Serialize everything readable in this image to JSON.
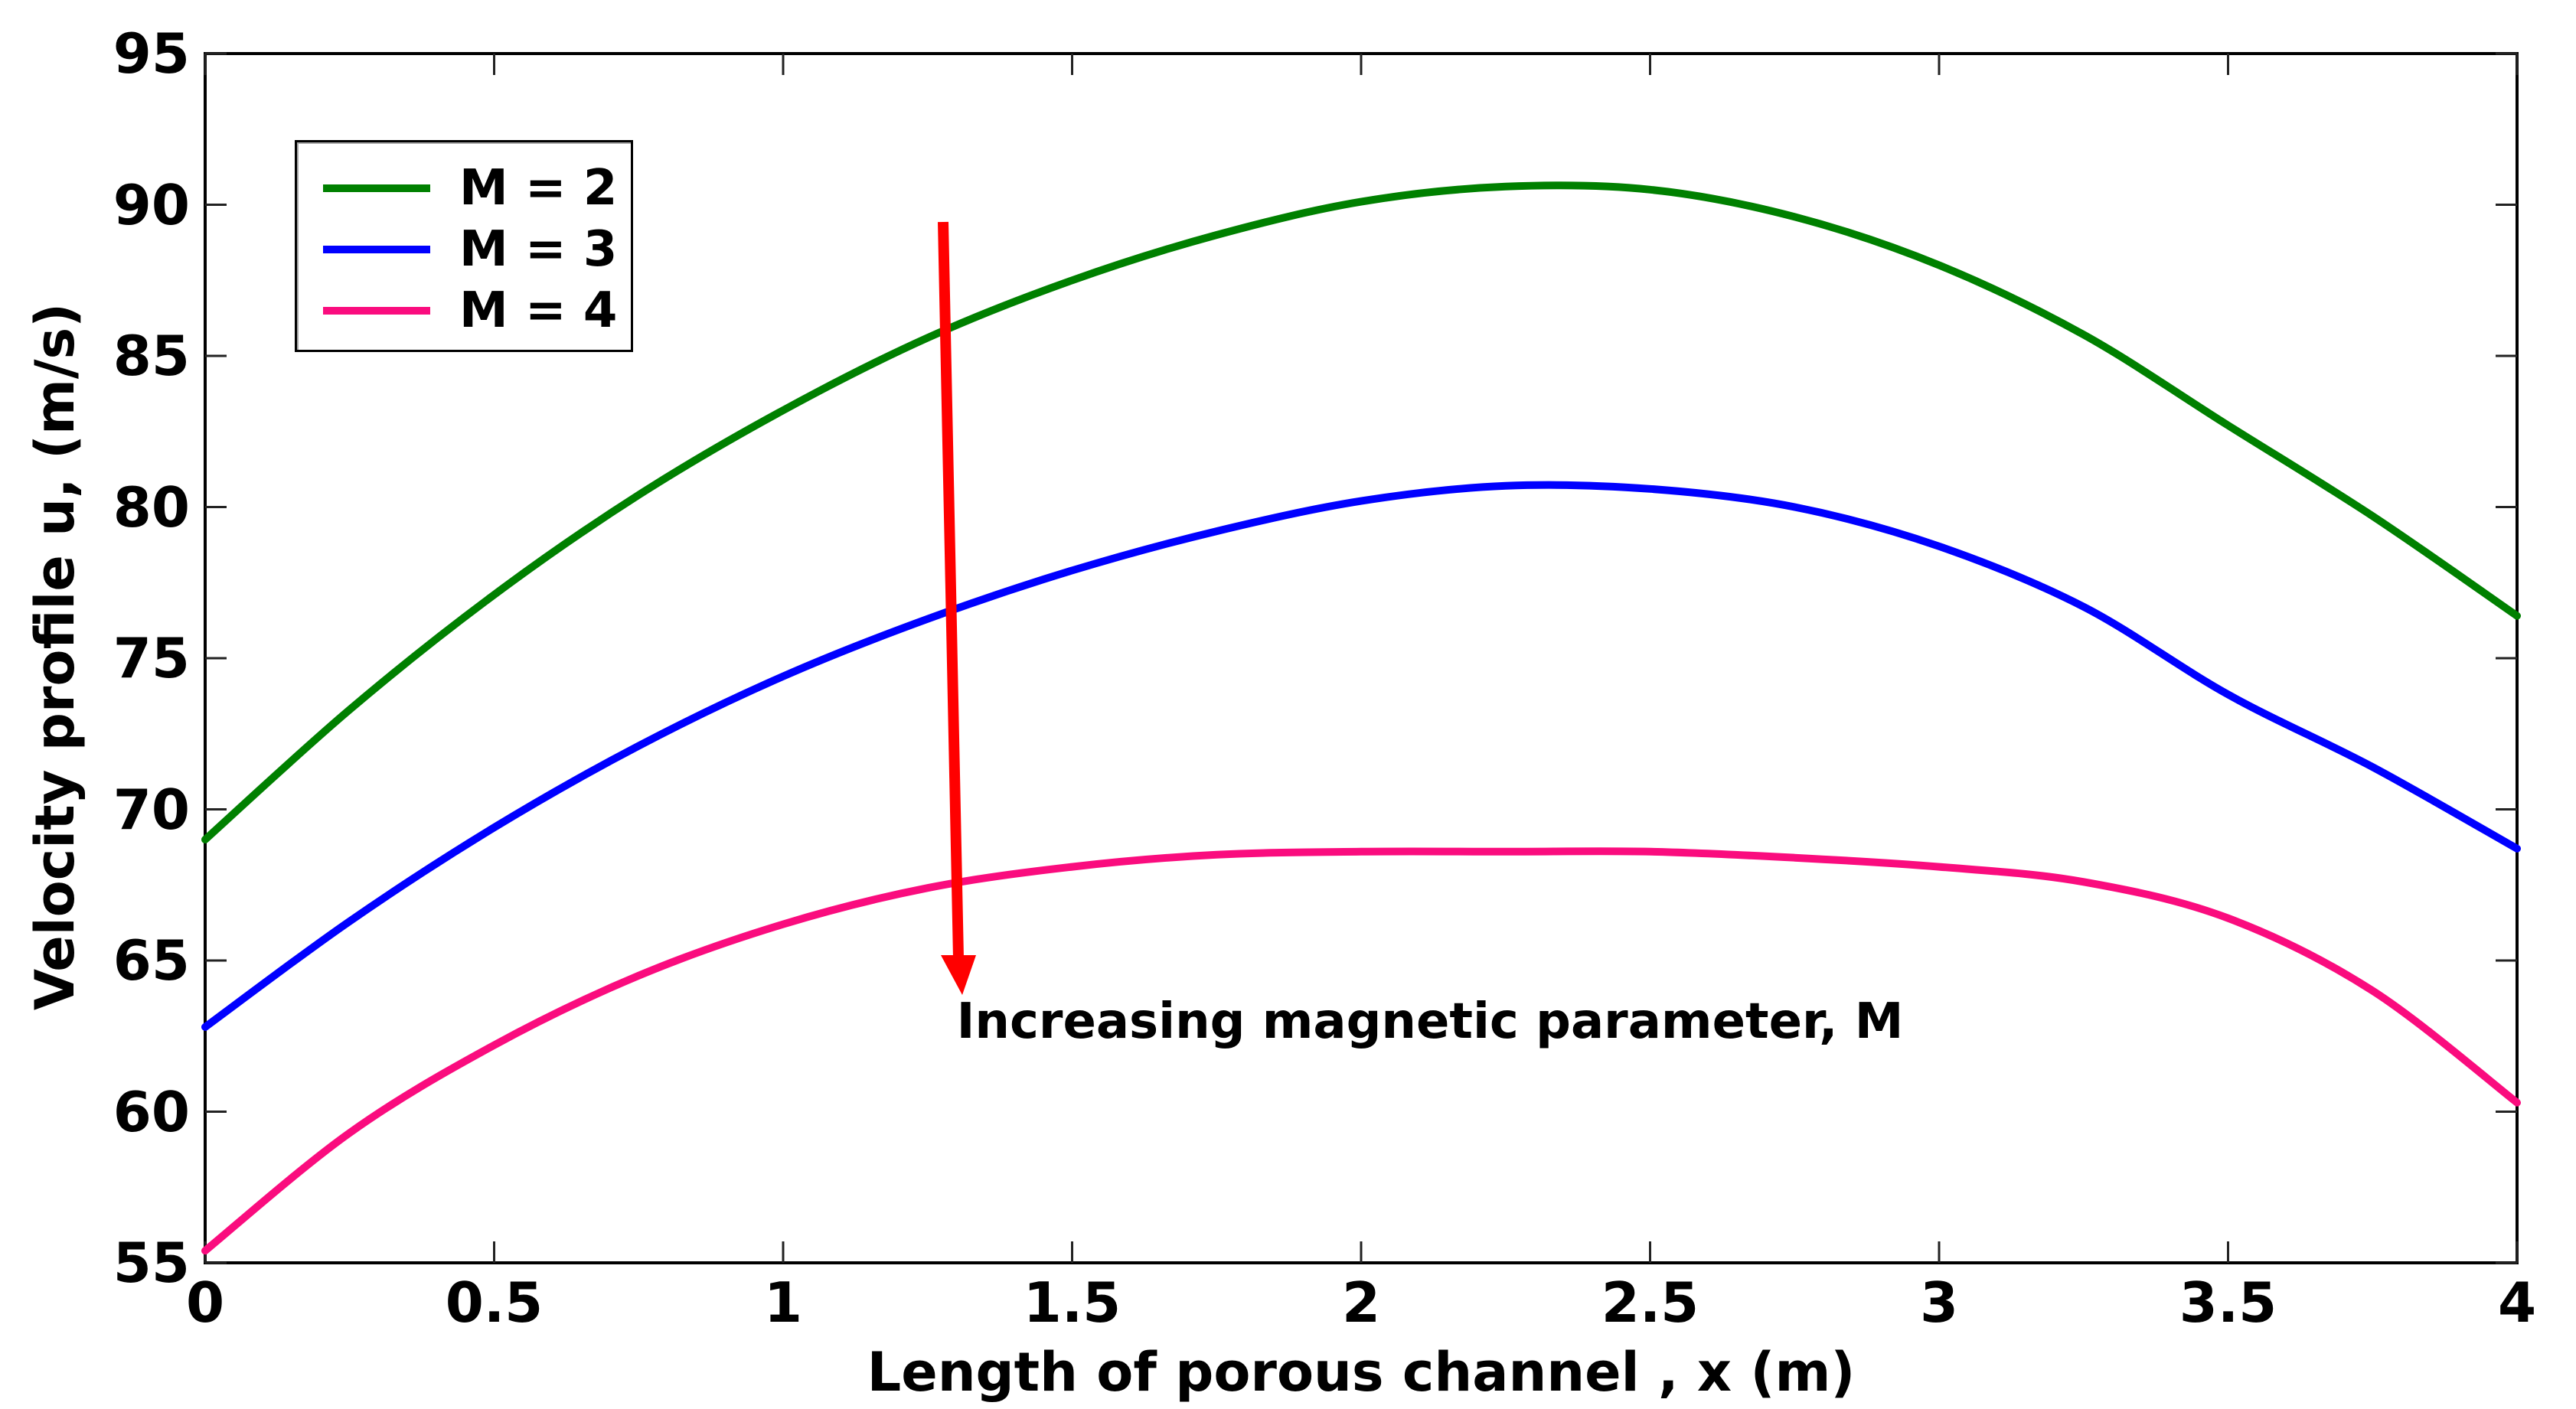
{
  "figure": {
    "background": "#ffffff",
    "axis_color": "#000000",
    "tick_color": "#222222"
  },
  "chart_data": {
    "type": "line",
    "title": "",
    "xlabel": "Length of porous channel , x (m)",
    "ylabel": "Velocity profile u, (m/s)",
    "xlim": [
      0,
      4
    ],
    "ylim": [
      55,
      95
    ],
    "grid": false,
    "legend_position": "top-left",
    "x_ticks": [
      "0",
      "0.5",
      "1",
      "1.5",
      "2",
      "2.5",
      "3",
      "3.5",
      "4"
    ],
    "y_ticks": [
      "55",
      "60",
      "65",
      "70",
      "75",
      "80",
      "85",
      "90",
      "95"
    ],
    "x": [
      0,
      0.25,
      0.5,
      0.75,
      1,
      1.25,
      1.5,
      1.75,
      2,
      2.25,
      2.5,
      2.75,
      3,
      3.25,
      3.5,
      3.75,
      4
    ],
    "series": [
      {
        "name": "M = 2",
        "color": "#008000",
        "values": [
          69.0,
          73.3,
          77.1,
          80.4,
          83.2,
          85.6,
          87.5,
          89.0,
          90.1,
          90.6,
          90.5,
          89.6,
          88.0,
          85.7,
          82.7,
          79.7,
          76.4
        ]
      },
      {
        "name": "M = 3",
        "color": "#0000ff",
        "values": [
          62.8,
          66.3,
          69.4,
          72.1,
          74.4,
          76.3,
          77.9,
          79.2,
          80.2,
          80.7,
          80.6,
          80.0,
          78.7,
          76.7,
          73.8,
          71.4,
          68.7
        ]
      },
      {
        "name": "M = 4",
        "color": "#fa0c7e",
        "values": [
          55.4,
          59.3,
          62.2,
          64.5,
          66.2,
          67.4,
          68.1,
          68.5,
          68.6,
          68.6,
          68.6,
          68.4,
          68.1,
          67.6,
          66.4,
          64.0,
          60.3
        ]
      }
    ],
    "annotation": {
      "text": "Increasing magnetic parameter, M",
      "arrow_color": "#ff0000",
      "arrow_direction": "down"
    }
  }
}
